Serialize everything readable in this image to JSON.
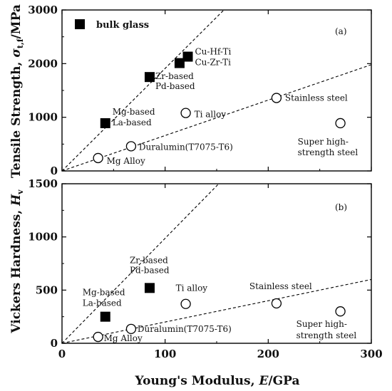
{
  "chart_data": [
    {
      "panel": "(a)",
      "type": "scatter",
      "ylabel_main": "Tensile Strength, ",
      "ylabel_symbol": "σ",
      "ylabel_sub": "t,f",
      "ylabel_unit": "/MPa",
      "xlim": [
        0,
        300
      ],
      "ylim": [
        0,
        3000
      ],
      "y_ticks": [
        0,
        1000,
        2000,
        3000
      ],
      "legend": [
        {
          "label": "bulk glass",
          "marker": "filled-square"
        }
      ],
      "series": [
        {
          "name": "bulk glass",
          "marker": "filled-square",
          "points": [
            {
              "x": 42,
              "y": 890,
              "label": "Mg-based\nLa-based"
            },
            {
              "x": 85,
              "y": 1750,
              "label": "Zr-based\nPd-based"
            },
            {
              "x": 114,
              "y": 2010,
              "label": ""
            },
            {
              "x": 122,
              "y": 2130,
              "label": "Cu-Hf-Ti\nCu-Zr-Ti"
            }
          ]
        },
        {
          "marker": "open-circle",
          "points": [
            {
              "x": 35,
              "y": 240,
              "label": "Mg Alloy"
            },
            {
              "x": 67,
              "y": 460,
              "label": "Duralumin(T7075-T6)"
            },
            {
              "x": 120,
              "y": 1080,
              "label": "Ti alloy"
            },
            {
              "x": 208,
              "y": 1360,
              "label": "Stainless steel"
            },
            {
              "x": 270,
              "y": 890,
              "label": "Super high-\nstrength steel"
            }
          ]
        }
      ],
      "reference_lines": [
        {
          "style": "dashed",
          "from": [
            0,
            0
          ],
          "to": [
            157,
            3000
          ]
        },
        {
          "style": "dashed",
          "from": [
            0,
            0
          ],
          "to": [
            300,
            1980
          ]
        }
      ]
    },
    {
      "panel": "(b)",
      "type": "scatter",
      "ylabel_main": "Vickers Hardness, ",
      "ylabel_symbol": "H",
      "ylabel_sub": "v",
      "ylabel_unit": "",
      "xlabel_main": "Young's Modulus, ",
      "xlabel_symbol": "E",
      "xlabel_unit": "/GPa",
      "xlim": [
        0,
        300
      ],
      "ylim": [
        0,
        1500
      ],
      "x_ticks": [
        0,
        100,
        200,
        300
      ],
      "y_ticks": [
        0,
        500,
        1000,
        1500
      ],
      "series": [
        {
          "marker": "filled-square",
          "points": [
            {
              "x": 42,
              "y": 250,
              "label": "Mg-based\nLa-based"
            },
            {
              "x": 85,
              "y": 520,
              "label": "Zr-based\nPd-based"
            }
          ]
        },
        {
          "marker": "open-circle",
          "points": [
            {
              "x": 35,
              "y": 60,
              "label": "Mg Alloy"
            },
            {
              "x": 67,
              "y": 135,
              "label": "Duralumin(T7075-T6)"
            },
            {
              "x": 120,
              "y": 370,
              "label": "Ti alloy"
            },
            {
              "x": 208,
              "y": 375,
              "label": "Stainless steel"
            },
            {
              "x": 270,
              "y": 300,
              "label": "Super high-\nstrength steel"
            }
          ]
        }
      ],
      "reference_lines": [
        {
          "style": "dashed",
          "from": [
            0,
            0
          ],
          "to": [
            152,
            1500
          ]
        },
        {
          "style": "dashed",
          "from": [
            0,
            0
          ],
          "to": [
            300,
            600
          ]
        }
      ]
    }
  ]
}
